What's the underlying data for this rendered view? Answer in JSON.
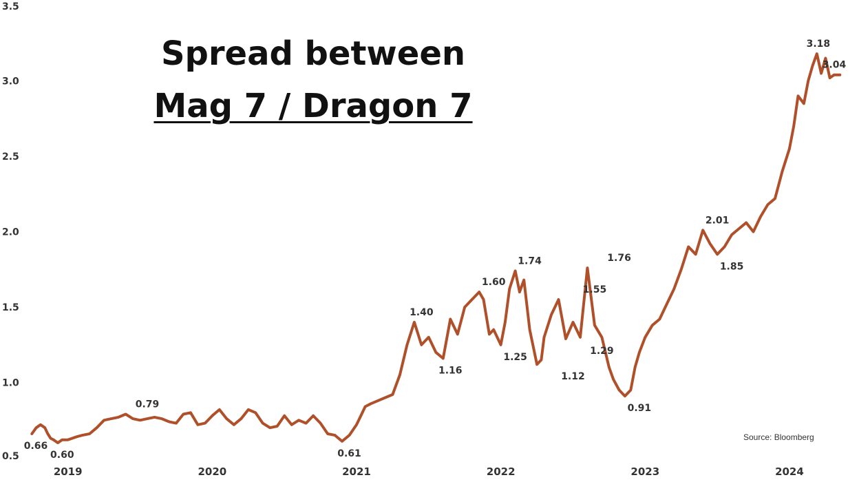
{
  "title": {
    "line1": "Spread between",
    "line2": "Mag 7 / Dragon 7"
  },
  "source": "Source: Bloomberg",
  "colors": {
    "line": "#b0502a",
    "text": "#333333"
  },
  "chart_data": {
    "type": "line",
    "title": "Spread between Mag 7 / Dragon 7",
    "xlabel": "",
    "ylabel": "",
    "ylim": [
      0.5,
      3.5
    ],
    "yticks": [
      "0.5",
      "1.0",
      "1.5",
      "2.0",
      "2.5",
      "3.0",
      "3.5"
    ],
    "xticks": [
      "2019",
      "2020",
      "2021",
      "2022",
      "2023",
      "2024"
    ],
    "xlim": [
      2018.72,
      2024.42
    ],
    "grid": false,
    "legend": "none",
    "series": [
      {
        "x": [
          2018.75,
          2018.78,
          2018.81,
          2018.84,
          2018.86,
          2018.88,
          2018.9,
          2018.93,
          2018.96,
          2019.0,
          2019.03,
          2019.06,
          2019.1,
          2019.15,
          2019.2,
          2019.25,
          2019.3,
          2019.35,
          2019.4,
          2019.45,
          2019.5,
          2019.55,
          2019.6,
          2019.65,
          2019.7,
          2019.75,
          2019.8,
          2019.85,
          2019.9,
          2019.95,
          2020.0,
          2020.05,
          2020.1,
          2020.15,
          2020.2,
          2020.25,
          2020.3,
          2020.35,
          2020.4,
          2020.45,
          2020.5,
          2020.55,
          2020.6,
          2020.65,
          2020.7,
          2020.75,
          2020.8,
          2020.85,
          2020.9,
          2020.95,
          2021.0,
          2021.03,
          2021.06,
          2021.1,
          2021.15,
          2021.2,
          2021.25,
          2021.3,
          2021.35,
          2021.4,
          2021.45,
          2021.5,
          2021.55,
          2021.6,
          2021.65,
          2021.7,
          2021.75,
          2021.8,
          2021.85,
          2021.88,
          2021.92,
          2021.95,
          2022.0,
          2022.03,
          2022.06,
          2022.1,
          2022.13,
          2022.16,
          2022.2,
          2022.25,
          2022.28,
          2022.3,
          2022.35,
          2022.4,
          2022.45,
          2022.5,
          2022.55,
          2022.6,
          2022.65,
          2022.7,
          2022.75,
          2022.78,
          2022.82,
          2022.86,
          2022.9,
          2022.93,
          2022.96,
          2023.0,
          2023.05,
          2023.1,
          2023.15,
          2023.2,
          2023.25,
          2023.3,
          2023.35,
          2023.4,
          2023.45,
          2023.5,
          2023.55,
          2023.6,
          2023.65,
          2023.7,
          2023.75,
          2023.8,
          2023.85,
          2023.9,
          2023.95,
          2024.0,
          2024.03,
          2024.06,
          2024.1,
          2024.13,
          2024.16,
          2024.19,
          2024.22,
          2024.25,
          2024.28,
          2024.31,
          2024.35
        ],
        "y": [
          0.66,
          0.7,
          0.72,
          0.7,
          0.66,
          0.63,
          0.62,
          0.6,
          0.62,
          0.62,
          0.63,
          0.64,
          0.65,
          0.66,
          0.7,
          0.75,
          0.76,
          0.77,
          0.79,
          0.76,
          0.75,
          0.76,
          0.77,
          0.76,
          0.74,
          0.73,
          0.79,
          0.8,
          0.72,
          0.73,
          0.78,
          0.82,
          0.76,
          0.72,
          0.76,
          0.82,
          0.8,
          0.73,
          0.7,
          0.71,
          0.78,
          0.72,
          0.75,
          0.73,
          0.78,
          0.73,
          0.66,
          0.65,
          0.61,
          0.65,
          0.72,
          0.78,
          0.84,
          0.86,
          0.88,
          0.9,
          0.92,
          1.05,
          1.25,
          1.4,
          1.25,
          1.3,
          1.2,
          1.16,
          1.42,
          1.32,
          1.5,
          1.55,
          1.6,
          1.55,
          1.32,
          1.35,
          1.25,
          1.4,
          1.62,
          1.74,
          1.6,
          1.68,
          1.35,
          1.12,
          1.15,
          1.3,
          1.45,
          1.55,
          1.29,
          1.4,
          1.3,
          1.76,
          1.38,
          1.3,
          1.1,
          1.02,
          0.95,
          0.91,
          0.95,
          1.1,
          1.2,
          1.3,
          1.38,
          1.42,
          1.52,
          1.62,
          1.75,
          1.9,
          1.85,
          2.01,
          1.92,
          1.85,
          1.9,
          1.98,
          2.02,
          2.06,
          2.0,
          2.1,
          2.18,
          2.22,
          2.4,
          2.55,
          2.7,
          2.9,
          2.85,
          3.0,
          3.1,
          3.18,
          3.05,
          3.15,
          3.02,
          3.04,
          3.04
        ]
      }
    ],
    "annotations": [
      {
        "x": 2018.75,
        "y": 0.66,
        "text": "0.66"
      },
      {
        "x": 2018.96,
        "y": 0.6,
        "text": "0.60"
      },
      {
        "x": 2019.55,
        "y": 0.79,
        "text": "0.79"
      },
      {
        "x": 2020.95,
        "y": 0.61,
        "text": "0.61"
      },
      {
        "x": 2021.45,
        "y": 1.4,
        "text": "1.40"
      },
      {
        "x": 2021.65,
        "y": 1.16,
        "text": "1.16"
      },
      {
        "x": 2021.95,
        "y": 1.6,
        "text": "1.60"
      },
      {
        "x": 2022.1,
        "y": 1.25,
        "text": "1.25"
      },
      {
        "x": 2022.2,
        "y": 1.74,
        "text": "1.74"
      },
      {
        "x": 2022.5,
        "y": 1.12,
        "text": "1.12"
      },
      {
        "x": 2022.65,
        "y": 1.55,
        "text": "1.55"
      },
      {
        "x": 2022.7,
        "y": 1.29,
        "text": "1.29"
      },
      {
        "x": 2022.82,
        "y": 1.76,
        "text": "1.76"
      },
      {
        "x": 2022.96,
        "y": 0.91,
        "text": "0.91"
      },
      {
        "x": 2023.5,
        "y": 2.01,
        "text": "2.01"
      },
      {
        "x": 2023.6,
        "y": 1.85,
        "text": "1.85"
      },
      {
        "x": 2024.2,
        "y": 3.18,
        "text": "3.18"
      },
      {
        "x": 2024.31,
        "y": 3.04,
        "text": "3.04"
      }
    ]
  }
}
